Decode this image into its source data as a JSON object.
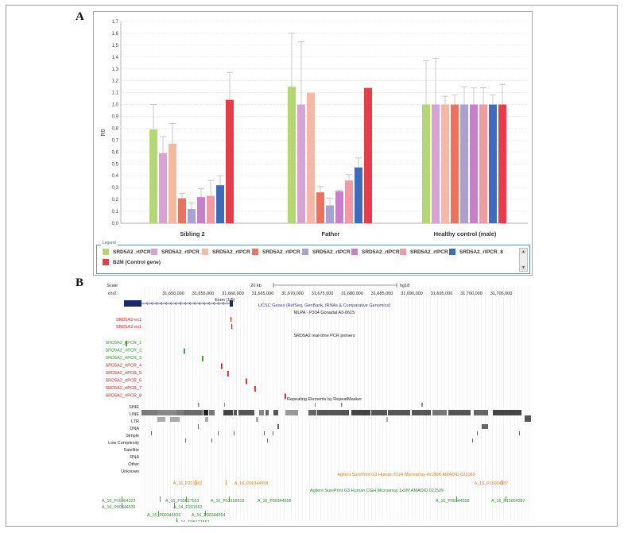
{
  "panel_labels": {
    "a": "A",
    "b": "B"
  },
  "chart_data": [
    {
      "type": "bar",
      "ylabel": "R0",
      "ylim": [
        0,
        1.7
      ],
      "yticks": [
        "0,0",
        "0,1",
        "0,2",
        "0,3",
        "0,4",
        "0,5",
        "0,6",
        "0,7",
        "0,8",
        "0,9",
        "1,0",
        "1,1",
        "1,2",
        "1,3",
        "1,4",
        "1,5",
        "1,6",
        "1,7"
      ],
      "grid": true,
      "legend_title": "Legend",
      "legend_position": "bottom",
      "categories": [
        "Sibling 2",
        "Father",
        "Healthy control (male)"
      ],
      "series": [
        {
          "name": "SRD5A2_rtPCR_1",
          "color": "#b3d873",
          "values": [
            0.79,
            1.15,
            1.0
          ],
          "error": [
            0.21,
            0.45,
            0.37
          ]
        },
        {
          "name": "SRD5A2_rtPCR_2",
          "color": "#d6a3d3",
          "values": [
            0.59,
            1.0,
            1.0
          ],
          "error": [
            0.14,
            0.53,
            0.39
          ]
        },
        {
          "name": "SRD5A2_rtPCR_3",
          "color": "#f5b9a3",
          "values": [
            0.67,
            1.1,
            1.0
          ],
          "error": [
            0.17,
            0.0,
            0.07
          ]
        },
        {
          "name": "SRD5A2_rtPCR_4",
          "color": "#e9735f",
          "values": [
            0.21,
            0.26,
            1.0
          ],
          "error": [
            0.04,
            0.05,
            0.08
          ]
        },
        {
          "name": "SRD5A2_rtPCR_5",
          "color": "#aaa0d2",
          "values": [
            0.12,
            0.15,
            1.0
          ],
          "error": [
            0.05,
            0.06,
            0.15
          ]
        },
        {
          "name": "SRD5A2_rtPCR_6",
          "color": "#c77fc7",
          "values": [
            0.22,
            0.27,
            1.0
          ],
          "error": [
            0.07,
            0.01,
            0.14
          ]
        },
        {
          "name": "SRD5A2_rtPCR_7",
          "color": "#f19aa3",
          "values": [
            0.23,
            0.36,
            1.0
          ],
          "error": [
            0.13,
            0.05,
            0.14
          ]
        },
        {
          "name": "SRD5A2_rtPCR_8",
          "color": "#3f6bbd",
          "values": [
            0.32,
            0.47,
            1.0
          ],
          "error": [
            0.08,
            0.08,
            0.08
          ]
        },
        {
          "name": "B2M (Control gene)",
          "color": "#e83c4a",
          "values": [
            1.04,
            1.14,
            1.0
          ],
          "error": [
            0.23,
            0.0,
            0.17
          ]
        }
      ]
    },
    {
      "type": "genome-browser",
      "scale_label": "Scale",
      "chrom_label": "chr2:",
      "scale_bar": "20 kb",
      "assembly": "hg18",
      "positions": [
        "31,650,000",
        "31,655,000",
        "31,660,000",
        "31,665,000",
        "31,670,000",
        "31,675,000",
        "31,680,000",
        "31,685,000",
        "31,690,000",
        "31,695,000",
        "31,700,000",
        "31,705,000"
      ],
      "gene_track_label": "UCSC Genes (RefSeq, GenBank, tRNAs & Comparative Genomics)",
      "exon_label": "Exon (1/5)",
      "gene_name": "SRD5A2",
      "mlpa_label": "MLPA - P334 Gonadal A3-0615",
      "mlpa_probes": [
        "SRD5A2-ex1",
        "SRD5A2-ex1"
      ],
      "primer_track_label": "SRD5A2 real-time PCR primers",
      "primers": [
        {
          "name": "SRD5A2_rtPCR_1",
          "color": "#2f9a2f"
        },
        {
          "name": "SRD5A2_rtPCR_2",
          "color": "#2f9a2f"
        },
        {
          "name": "SRD5A2_rtPCR_3",
          "color": "#2f9a2f"
        },
        {
          "name": "SRD5A2_rtPCR_4",
          "color": "#d42020"
        },
        {
          "name": "SRD5A2_rtPCR_5",
          "color": "#d42020"
        },
        {
          "name": "SRD5A2_rtPCR_6",
          "color": "#d42020"
        },
        {
          "name": "SRD5A2_rtPCR_7",
          "color": "#d42020"
        },
        {
          "name": "SRD5A2_rtPCR_8",
          "color": "#d42020"
        }
      ],
      "repeat_track_label": "Repeating Elements by RepeatMasker",
      "repeat_classes": [
        "SINE",
        "LINE",
        "LTR",
        "DNA",
        "Simple",
        "Low Complexity",
        "Satellite",
        "RNA",
        "Other",
        "Unknown"
      ],
      "array1_label": "Agilent SurePrint G3 Human CGH Microarray 4x180K AMADID 022060",
      "array1_probes": [
        "A_16_P201562",
        "A_16_P00344558",
        "A_16_P15004387"
      ],
      "array2_label": "Agilent SurePrint G3 Human CGH Microarray 1x1M AMADID 021529",
      "array2_probes": [
        "A_16_P15004322",
        "A_16_P35627553",
        "A_16_P13158518",
        "A_16_P00344558",
        "A_16_P00344558",
        "A_16_P15004387",
        "A_16_P00344536",
        "A_14_P201562",
        "A_16_P00344539",
        "A_16_P00344554",
        "A_16_P35627552"
      ]
    }
  ]
}
